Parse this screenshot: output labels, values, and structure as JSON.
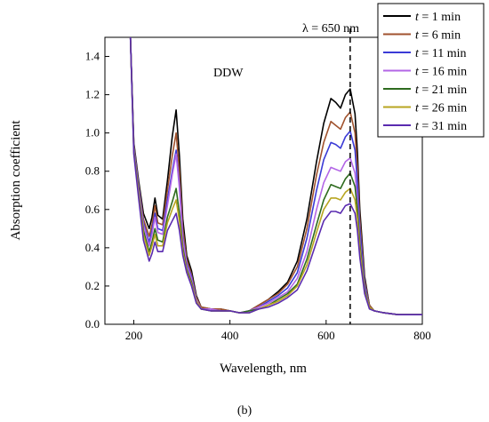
{
  "chart_data": {
    "type": "line",
    "title": "",
    "xlabel": "Wavelength, nm",
    "ylabel": "Absorption coefficient",
    "xlim": [
      140,
      800
    ],
    "ylim": [
      0,
      1.5
    ],
    "x_ticks": [
      200,
      400,
      600,
      800
    ],
    "y_ticks": [
      0.0,
      0.2,
      0.4,
      0.6,
      0.8,
      1.0,
      1.2,
      1.4
    ],
    "x_tick_labels": [
      "200",
      "400",
      "600",
      "800"
    ],
    "y_tick_labels": [
      "0.0",
      "0.2",
      "0.4",
      "0.6",
      "0.8",
      "1.0",
      "1.2",
      "1.4"
    ],
    "grid": false,
    "legend_position": "top-right",
    "annotations": {
      "sample": "DDW",
      "lambda": "λ = 650 nm",
      "panel": "(b)"
    },
    "reference_line": {
      "x": 650,
      "style": "dashed"
    },
    "x": [
      193,
      200,
      210,
      220,
      232,
      238,
      244,
      250,
      260,
      270,
      280,
      288,
      295,
      302,
      310,
      320,
      330,
      340,
      360,
      380,
      400,
      420,
      440,
      460,
      480,
      500,
      520,
      540,
      560,
      580,
      595,
      610,
      620,
      630,
      640,
      650,
      660,
      665,
      670,
      680,
      690,
      700,
      720,
      750,
      780,
      800
    ],
    "series": [
      {
        "name": "t = 1 min",
        "color": "#000000",
        "values": [
          1.5,
          0.95,
          0.75,
          0.58,
          0.5,
          0.56,
          0.66,
          0.57,
          0.55,
          0.75,
          0.98,
          1.12,
          0.88,
          0.55,
          0.36,
          0.28,
          0.15,
          0.09,
          0.08,
          0.08,
          0.07,
          0.06,
          0.07,
          0.1,
          0.13,
          0.17,
          0.22,
          0.33,
          0.55,
          0.85,
          1.05,
          1.18,
          1.16,
          1.13,
          1.2,
          1.23,
          1.1,
          0.9,
          0.6,
          0.25,
          0.1,
          0.07,
          0.06,
          0.05,
          0.05,
          0.05
        ]
      },
      {
        "name": "t = 6 min",
        "color": "#a0522d",
        "values": [
          1.5,
          0.94,
          0.73,
          0.55,
          0.46,
          0.52,
          0.62,
          0.53,
          0.52,
          0.7,
          0.88,
          1.0,
          0.8,
          0.5,
          0.34,
          0.26,
          0.14,
          0.09,
          0.08,
          0.08,
          0.07,
          0.06,
          0.07,
          0.1,
          0.13,
          0.16,
          0.21,
          0.3,
          0.5,
          0.78,
          0.95,
          1.06,
          1.04,
          1.02,
          1.08,
          1.11,
          1.0,
          0.82,
          0.55,
          0.23,
          0.1,
          0.07,
          0.06,
          0.05,
          0.05,
          0.05
        ]
      },
      {
        "name": "t = 11 min",
        "color": "#3b3bd6",
        "values": [
          1.5,
          0.93,
          0.72,
          0.53,
          0.43,
          0.49,
          0.58,
          0.5,
          0.49,
          0.65,
          0.8,
          0.91,
          0.73,
          0.46,
          0.32,
          0.25,
          0.13,
          0.08,
          0.08,
          0.07,
          0.07,
          0.06,
          0.07,
          0.09,
          0.12,
          0.15,
          0.19,
          0.27,
          0.45,
          0.7,
          0.86,
          0.95,
          0.94,
          0.92,
          0.98,
          1.01,
          0.91,
          0.74,
          0.5,
          0.21,
          0.09,
          0.07,
          0.06,
          0.05,
          0.05,
          0.05
        ]
      },
      {
        "name": "t = 16 min",
        "color": "#b366e6",
        "values": [
          1.5,
          0.92,
          0.71,
          0.52,
          0.41,
          0.47,
          0.56,
          0.48,
          0.47,
          0.62,
          0.78,
          0.89,
          0.71,
          0.45,
          0.31,
          0.24,
          0.13,
          0.08,
          0.08,
          0.07,
          0.07,
          0.06,
          0.07,
          0.09,
          0.11,
          0.14,
          0.17,
          0.24,
          0.38,
          0.6,
          0.74,
          0.82,
          0.81,
          0.8,
          0.85,
          0.87,
          0.79,
          0.65,
          0.45,
          0.19,
          0.09,
          0.07,
          0.06,
          0.05,
          0.05,
          0.05
        ]
      },
      {
        "name": "t = 21 min",
        "color": "#2e6b1e",
        "values": [
          1.5,
          0.91,
          0.69,
          0.49,
          0.38,
          0.43,
          0.5,
          0.44,
          0.43,
          0.56,
          0.64,
          0.71,
          0.58,
          0.4,
          0.29,
          0.22,
          0.12,
          0.08,
          0.07,
          0.07,
          0.07,
          0.06,
          0.07,
          0.08,
          0.1,
          0.13,
          0.16,
          0.21,
          0.34,
          0.52,
          0.65,
          0.73,
          0.72,
          0.71,
          0.76,
          0.79,
          0.72,
          0.6,
          0.42,
          0.18,
          0.09,
          0.07,
          0.06,
          0.05,
          0.05,
          0.05
        ]
      },
      {
        "name": "t = 26 min",
        "color": "#b8a520",
        "values": [
          1.5,
          0.9,
          0.68,
          0.47,
          0.36,
          0.41,
          0.47,
          0.41,
          0.41,
          0.53,
          0.6,
          0.65,
          0.54,
          0.38,
          0.28,
          0.21,
          0.12,
          0.08,
          0.07,
          0.07,
          0.07,
          0.06,
          0.06,
          0.08,
          0.1,
          0.12,
          0.15,
          0.2,
          0.31,
          0.48,
          0.6,
          0.66,
          0.66,
          0.65,
          0.69,
          0.71,
          0.65,
          0.55,
          0.39,
          0.17,
          0.09,
          0.07,
          0.06,
          0.05,
          0.05,
          0.05
        ]
      },
      {
        "name": "t = 31 min",
        "color": "#5a2bb0",
        "values": [
          1.5,
          0.89,
          0.66,
          0.44,
          0.33,
          0.37,
          0.43,
          0.38,
          0.38,
          0.49,
          0.54,
          0.58,
          0.49,
          0.36,
          0.27,
          0.2,
          0.11,
          0.08,
          0.07,
          0.07,
          0.07,
          0.06,
          0.06,
          0.08,
          0.09,
          0.11,
          0.14,
          0.18,
          0.28,
          0.43,
          0.54,
          0.59,
          0.59,
          0.58,
          0.62,
          0.63,
          0.58,
          0.49,
          0.35,
          0.16,
          0.08,
          0.07,
          0.06,
          0.05,
          0.05,
          0.05
        ]
      }
    ]
  }
}
